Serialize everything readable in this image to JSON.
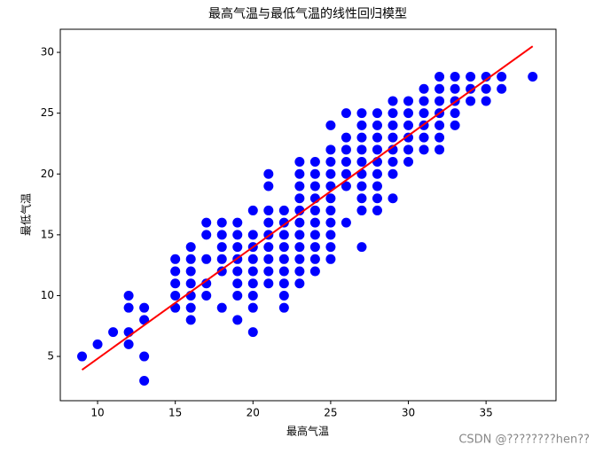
{
  "chart_data": {
    "type": "scatter",
    "title": "最高气温与最低气温的线性回归模型",
    "x_label": "最高气温",
    "y_label": "最低气温",
    "color": "#0000ff",
    "x": [
      9,
      10,
      11,
      12,
      12,
      12,
      12,
      13,
      13,
      13,
      13,
      15,
      15,
      15,
      15,
      15,
      16,
      16,
      16,
      16,
      16,
      16,
      16,
      17,
      17,
      17,
      17,
      17,
      18,
      18,
      18,
      18,
      18,
      18,
      19,
      19,
      19,
      19,
      19,
      19,
      19,
      19,
      20,
      20,
      20,
      20,
      20,
      20,
      20,
      20,
      20,
      21,
      21,
      21,
      21,
      21,
      21,
      21,
      21,
      21,
      22,
      22,
      22,
      22,
      22,
      22,
      22,
      22,
      22,
      23,
      23,
      23,
      23,
      23,
      23,
      23,
      23,
      23,
      23,
      23,
      24,
      24,
      24,
      24,
      24,
      24,
      24,
      24,
      24,
      24,
      25,
      25,
      25,
      25,
      25,
      25,
      25,
      25,
      25,
      25,
      25,
      26,
      26,
      26,
      26,
      26,
      26,
      26,
      27,
      27,
      27,
      27,
      27,
      27,
      27,
      27,
      27,
      27,
      28,
      28,
      28,
      28,
      28,
      28,
      28,
      28,
      28,
      29,
      29,
      29,
      29,
      29,
      29,
      29,
      29,
      30,
      30,
      30,
      30,
      30,
      30,
      31,
      31,
      31,
      31,
      31,
      31,
      32,
      32,
      32,
      32,
      32,
      32,
      32,
      33,
      33,
      33,
      33,
      33,
      34,
      34,
      34,
      35,
      35,
      35,
      36,
      36,
      38
    ],
    "y": [
      5,
      6,
      7,
      6,
      7,
      9,
      10,
      3,
      5,
      8,
      9,
      9,
      10,
      11,
      12,
      13,
      8,
      9,
      10,
      11,
      12,
      13,
      14,
      10,
      11,
      13,
      15,
      16,
      9,
      12,
      13,
      14,
      15,
      16,
      8,
      10,
      11,
      12,
      13,
      14,
      15,
      16,
      7,
      9,
      10,
      11,
      12,
      13,
      14,
      15,
      17,
      11,
      12,
      13,
      14,
      15,
      16,
      17,
      19,
      20,
      9,
      10,
      11,
      12,
      13,
      14,
      15,
      16,
      17,
      11,
      12,
      13,
      14,
      15,
      16,
      17,
      18,
      19,
      20,
      21,
      12,
      13,
      14,
      15,
      16,
      17,
      18,
      19,
      20,
      21,
      13,
      14,
      15,
      16,
      17,
      18,
      19,
      20,
      21,
      22,
      24,
      16,
      19,
      20,
      21,
      22,
      23,
      25,
      14,
      17,
      18,
      19,
      20,
      21,
      22,
      23,
      24,
      25,
      17,
      18,
      19,
      20,
      21,
      22,
      23,
      24,
      25,
      18,
      20,
      21,
      22,
      23,
      24,
      25,
      26,
      21,
      22,
      23,
      24,
      25,
      26,
      22,
      23,
      24,
      25,
      26,
      27,
      22,
      23,
      24,
      25,
      26,
      27,
      28,
      24,
      25,
      26,
      27,
      28,
      26,
      27,
      28,
      26,
      27,
      28,
      27,
      28,
      28
    ],
    "line": {
      "x": [
        9,
        38
      ],
      "y": [
        3.9,
        30.5
      ],
      "color": "#ff0000"
    },
    "xlim": [
      7.6,
      39.5
    ],
    "ylim": [
      1.36,
      31.9
    ],
    "xticks": [
      10,
      15,
      20,
      25,
      30,
      35
    ],
    "yticks": [
      5,
      10,
      15,
      20,
      25,
      30
    ]
  },
  "watermark": "CSDN @????????hen??"
}
